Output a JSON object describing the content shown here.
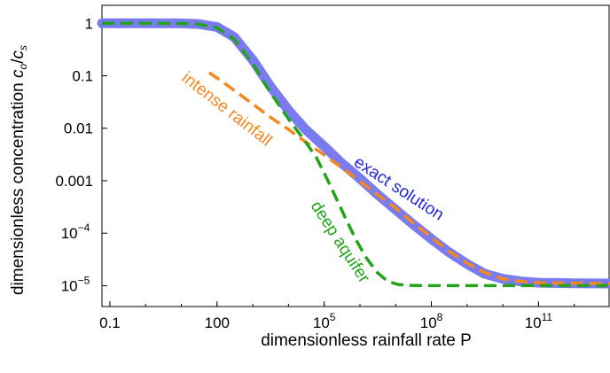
{
  "chart_data": {
    "type": "line",
    "title": "",
    "xlabel": "dimensionless rainfall rate P",
    "ylabel": "dimensionless concentration c₀/cₛ",
    "ylabel_parts": {
      "prefix": "dimensionless concentration ",
      "num": "c",
      "num_sub": "o",
      "slash": "/",
      "den": "c",
      "den_sub": "s"
    },
    "x_scale": "log",
    "y_scale": "log",
    "xlim": [
      0.06,
      10000000000000.0
    ],
    "ylim": [
      4e-06,
      2.2
    ],
    "x_ticks": [
      {
        "value": 0.1,
        "label": "0.1"
      },
      {
        "value": 100,
        "label": "100"
      },
      {
        "value": 100000,
        "label": "10",
        "sup": "5"
      },
      {
        "value": 100000000,
        "label": "10",
        "sup": "8"
      },
      {
        "value": 100000000000,
        "label": "10",
        "sup": "11"
      }
    ],
    "y_ticks": [
      {
        "value": 1,
        "label": "1"
      },
      {
        "value": 0.1,
        "label": "0.1"
      },
      {
        "value": 0.01,
        "label": "0.01"
      },
      {
        "value": 0.001,
        "label": "0.001"
      },
      {
        "value": 0.0001,
        "label": "10",
        "sup": "−4"
      },
      {
        "value": 1e-05,
        "label": "10",
        "sup": "−5"
      }
    ],
    "grid": false,
    "series": [
      {
        "name": "exact solution",
        "color": "#7b7bf0",
        "style": "solid-thick",
        "x": [
          0.06,
          1,
          10,
          30,
          100,
          300,
          1000,
          3000,
          10000,
          30000,
          100000,
          300000,
          1000000,
          3000000,
          10000000,
          30000000,
          100000000,
          300000000,
          1000000000,
          3000000000,
          10000000000,
          30000000000,
          100000000000,
          1000000000000,
          10000000000000
        ],
        "y": [
          1,
          1,
          0.995,
          0.97,
          0.85,
          0.55,
          0.2,
          0.065,
          0.022,
          0.0095,
          0.0045,
          0.0022,
          0.0011,
          0.00056,
          0.00028,
          0.00015,
          7.8e-05,
          4.4e-05,
          2.6e-05,
          1.7e-05,
          1.35e-05,
          1.21e-05,
          1.14e-05,
          1.11e-05,
          1.1e-05
        ]
      },
      {
        "name": "intense rainfall",
        "color": "#f5871f",
        "style": "dashed",
        "x": [
          60,
          200,
          1000,
          3000,
          10000,
          30000,
          100000,
          300000,
          1000000,
          3000000,
          10000000,
          30000000,
          100000000,
          300000000,
          1000000000,
          3000000000,
          10000000000,
          30000000000,
          100000000000,
          1000000000000,
          10000000000000
        ],
        "y": [
          0.115,
          0.065,
          0.029,
          0.0165,
          0.0095,
          0.0055,
          0.0031,
          0.0018,
          0.00098,
          0.00055,
          0.0003,
          0.00016,
          8.4e-05,
          4.6e-05,
          2.7e-05,
          1.8e-05,
          1.35e-05,
          1.21e-05,
          1.14e-05,
          1.11e-05,
          1.1e-05
        ]
      },
      {
        "name": "deep aquifer",
        "color": "#22a31a",
        "style": "dashed",
        "x": [
          0.06,
          1,
          10,
          30,
          100,
          300,
          1000,
          3000,
          10000,
          30000,
          60000,
          100000,
          200000,
          400000,
          800000,
          1500000,
          3000000,
          6000000,
          12000000,
          30000000,
          100000000,
          1000000000,
          100000000000,
          10000000000000
        ],
        "y": [
          1,
          1,
          0.99,
          0.96,
          0.82,
          0.5,
          0.17,
          0.05,
          0.015,
          0.0055,
          0.0028,
          0.0014,
          0.00052,
          0.00019,
          7.2e-05,
          3.4e-05,
          1.8e-05,
          1.2e-05,
          1.05e-05,
          1.01e-05,
          1e-05,
          1e-05,
          1e-05,
          1e-05
        ]
      }
    ],
    "annotations": [
      {
        "text": "intense rainfall",
        "series": "intense rainfall",
        "color": "#f5871f"
      },
      {
        "text": "exact solution",
        "series": "exact solution",
        "color": "#2626dd"
      },
      {
        "text": "deep aquifer",
        "series": "deep aquifer",
        "color": "#22a31a"
      }
    ]
  }
}
